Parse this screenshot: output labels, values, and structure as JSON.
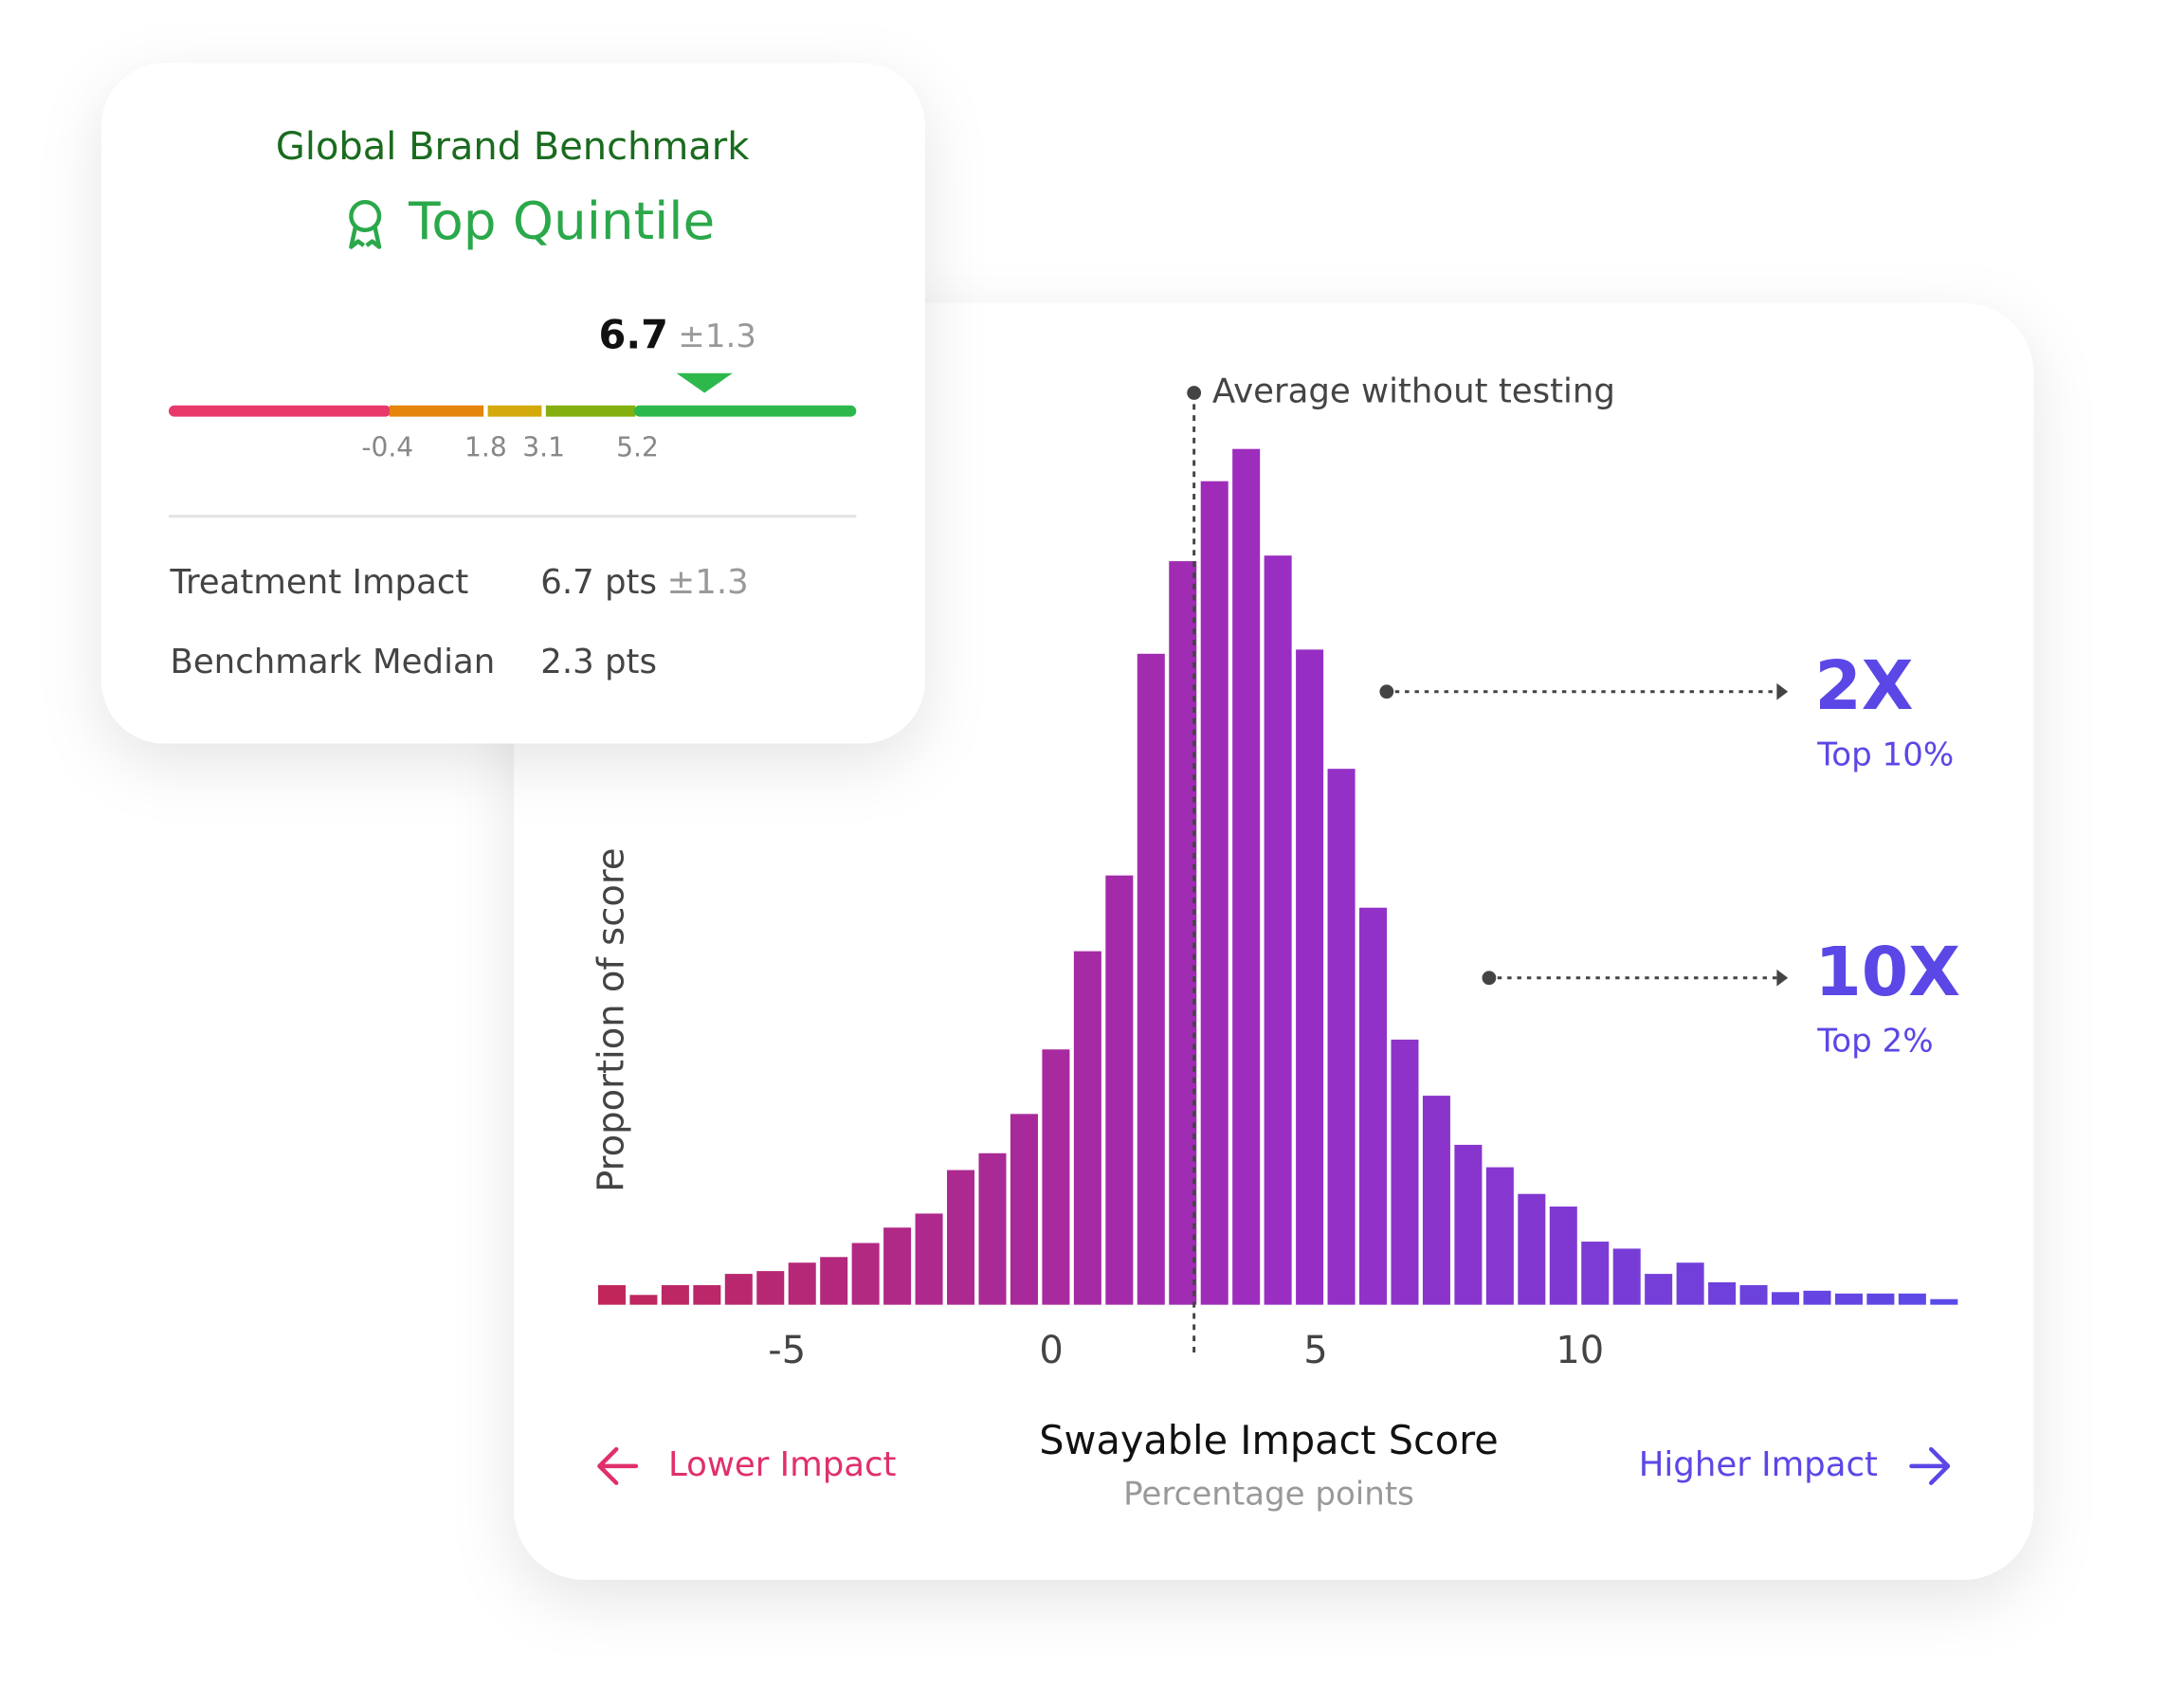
{
  "benchmark": {
    "title": "Global Brand Benchmark",
    "badge": "Top Quintile",
    "gauge": {
      "value": 6.7,
      "error": {
        "value": 1.3,
        "label": "±1.3"
      },
      "lim": [
        -5.3,
        10.1
      ],
      "thresholds": [
        -0.4,
        1.8,
        3.1,
        5.2
      ],
      "colors": [
        "#e8396b",
        "#e5850c",
        "#d4a90c",
        "#84b00f",
        "#2db84c"
      ]
    },
    "rows": [
      [
        "Treatment Impact",
        "6.7 pts",
        "±1.3"
      ],
      [
        "Benchmark Median",
        "2.3 pts"
      ]
    ]
  },
  "chart_data": {
    "type": "histogram",
    "x_label": "Swayable Impact Score",
    "x_sublabel": "Percentage points",
    "y_label": "Proportion of score",
    "bins": [
      -8.6,
      -8.0,
      -7.4,
      -6.8,
      -6.2,
      -5.6,
      -5.0,
      -4.4,
      -3.8,
      -3.2,
      -2.6,
      -2.0,
      -1.4,
      -0.8,
      -0.2,
      0.4,
      1.0,
      1.6,
      2.2,
      2.8,
      3.4,
      4.0,
      4.6,
      5.2,
      5.8,
      6.4,
      7.0,
      7.6,
      8.2,
      8.8,
      9.4,
      10.0,
      10.6,
      11.2,
      11.8,
      12.4,
      13.0,
      13.6,
      14.2,
      14.8,
      15.4,
      16.0,
      16.6,
      17.2
    ],
    "values": [
      1.4,
      0.7,
      1.4,
      1.4,
      2.2,
      2.4,
      3.0,
      3.4,
      4.4,
      5.5,
      6.5,
      9.6,
      10.8,
      13.6,
      18.2,
      25.2,
      30.6,
      46.4,
      53.0,
      58.7,
      61.0,
      53.4,
      46.7,
      38.2,
      28.3,
      18.9,
      14.9,
      11.4,
      9.8,
      7.9,
      7.0,
      4.5,
      4.0,
      2.2,
      3.0,
      1.6,
      1.4,
      0.9,
      1.0,
      0.8,
      0.8,
      0.8,
      0.4
    ],
    "colors": [
      "#c0265a",
      "#9a2dc2",
      "#5a4ae8"
    ],
    "xlim": [
      -8.6,
      17.2
    ],
    "ylim": [
      0,
      62
    ],
    "xticks": [
      -5,
      0,
      5,
      10
    ],
    "average_line": {
      "label": "Average without testing",
      "x": 2.7
    },
    "annotations": [
      {
        "label": "2X",
        "sublabel": "Top 10%"
      },
      {
        "label": "10X",
        "sublabel": "Top 2%"
      }
    ],
    "direction_labels": {
      "lower": "Lower Impact",
      "higher": "Higher Impact"
    }
  }
}
